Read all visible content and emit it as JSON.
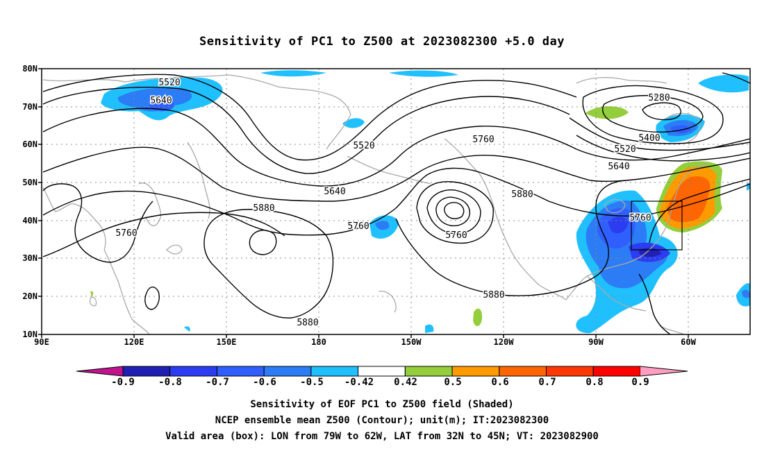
{
  "title": "Sensitivity of PC1 to Z500 at 2023082300 +5.0 day",
  "map": {
    "lat_labels": [
      "80N",
      "70N",
      "60N",
      "50N",
      "40N",
      "30N",
      "20N",
      "10N"
    ],
    "lon_labels": [
      "90E",
      "120E",
      "150E",
      "180",
      "150W",
      "120W",
      "90W",
      "60W"
    ],
    "contour_labels": [
      "5520",
      "5640",
      "5520",
      "5760",
      "5640",
      "5760",
      "5880",
      "5760",
      "5760",
      "5880",
      "5280",
      "5400",
      "5520",
      "5640",
      "5760",
      "5880",
      "5880"
    ],
    "valid_box": {
      "lon_west": "79W",
      "lon_east": "62W",
      "lat_south": "32N",
      "lat_north": "45N"
    }
  },
  "colorbar": {
    "labels": [
      "-0.9",
      "-0.8",
      "-0.7",
      "-0.6",
      "-0.5",
      "-0.42",
      "0.42",
      "0.5",
      "0.6",
      "0.7",
      "0.8",
      "0.9"
    ],
    "colors": [
      "#2020b4",
      "#2c3cf0",
      "#2f5fff",
      "#2c7cf5",
      "#20c0ff",
      "#ffffff",
      "#95ce3c",
      "#ff9a00",
      "#ff6500",
      "#ff3700",
      "#ff0000"
    ],
    "end_low_color": "#c0148c",
    "end_high_color": "#ff9ec0"
  },
  "captions": [
    "Sensitivity of EOF PC1 to Z500 field (Shaded)",
    "NCEP ensemble mean Z500 (Contour); unit(m); IT:2023082300",
    "Valid area (box): LON from 79W to 62W, LAT from 32N to 45N; VT: 2023082900"
  ]
}
